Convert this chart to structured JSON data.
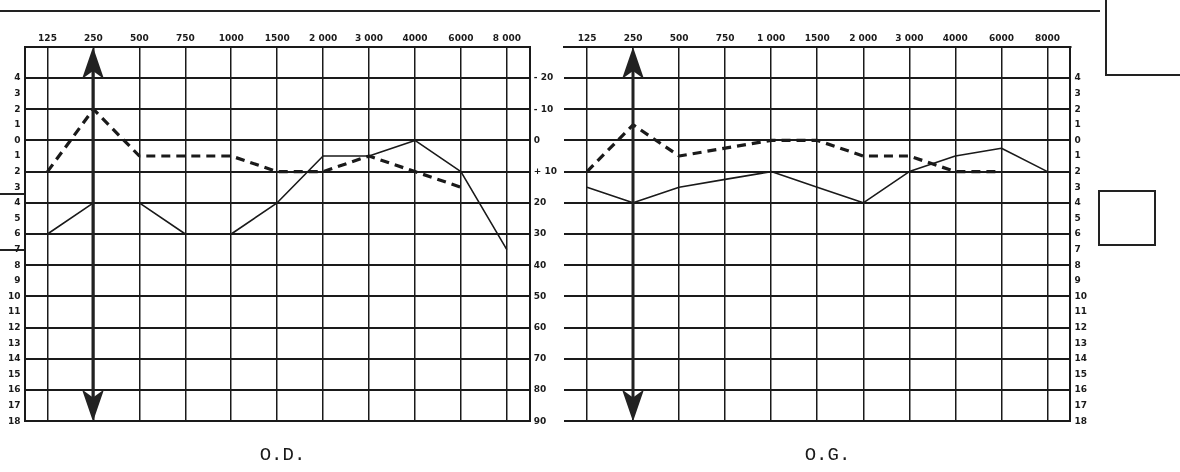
{
  "chart_data": [
    {
      "type": "line",
      "xlabel": "O.D.",
      "categories": [
        "125",
        "250",
        "500",
        "750",
        "1000",
        "1500",
        "2 000",
        "3 000",
        "4000",
        "6000",
        "8 000"
      ],
      "series": [
        {
          "color": "#1a1a1a",
          "line_style": "dashed",
          "values": [
            10,
            -10,
            5,
            5,
            5,
            10,
            10,
            5,
            10,
            15,
            null
          ]
        },
        {
          "color": "#1a1a1a",
          "line_style": "solid",
          "values": [
            30,
            20,
            20,
            30,
            30,
            20,
            5,
            5,
            0,
            10,
            35
          ]
        }
      ],
      "ylim": [
        90,
        -30
      ],
      "yticks": [
        {
          "value": -20,
          "label": "- 20"
        },
        {
          "value": -10,
          "label": "- 10"
        },
        0,
        {
          "value": 10,
          "label": "+ 10"
        },
        20,
        30,
        40,
        50,
        60,
        70,
        80,
        90
      ],
      "y2lim": [
        18,
        -6
      ],
      "y2ticks": [
        {
          "value": -4,
          "label": "4"
        },
        {
          "value": -3,
          "label": "3"
        },
        {
          "value": -2,
          "label": "2"
        },
        {
          "value": -1,
          "label": "1"
        },
        0,
        1,
        2,
        3,
        4,
        5,
        6,
        7,
        8,
        9,
        10,
        11,
        12,
        13,
        14,
        15,
        16,
        17,
        18
      ],
      "grid": true,
      "marker": "none",
      "legend": false
    },
    {
      "type": "line",
      "xlabel": "O.G.",
      "categories": [
        "125",
        "250",
        "500",
        "750",
        "1 000",
        "1500",
        "2 000",
        "3 000",
        "4000",
        "6000",
        "8000"
      ],
      "series": [
        {
          "color": "#1a1a1a",
          "line_style": "dashed",
          "values": [
            2,
            -1,
            1,
            0.5,
            0,
            0,
            1,
            1,
            2,
            2,
            null
          ]
        },
        {
          "color": "#1a1a1a",
          "line_style": "solid",
          "values": [
            3,
            4,
            3,
            2.5,
            2,
            3,
            4,
            2,
            1,
            0.5,
            2
          ]
        }
      ],
      "ylim": [
        18,
        -6
      ],
      "yticks": [
        {
          "value": -4,
          "label": "4"
        },
        {
          "value": -3,
          "label": "3"
        },
        {
          "value": -2,
          "label": "2"
        },
        {
          "value": -1,
          "label": "1"
        },
        0,
        1,
        2,
        3,
        4,
        5,
        6,
        7,
        8,
        9,
        10,
        11,
        12,
        13,
        14,
        15,
        16,
        17,
        18
      ],
      "grid": true,
      "marker": "none",
      "legend": false
    }
  ]
}
